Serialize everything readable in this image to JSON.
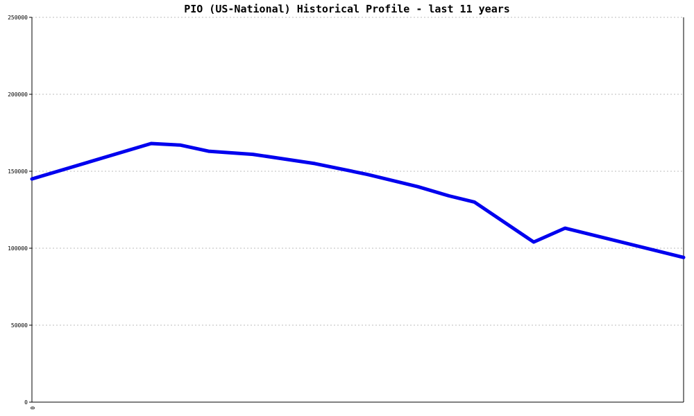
{
  "chart_data": {
    "type": "line",
    "title": "PIO (US-National) Historical Profile - last 11 years",
    "xlabel": "",
    "ylabel": "",
    "ylim": [
      0,
      250000
    ],
    "yticks": [
      0,
      50000,
      100000,
      150000,
      200000,
      250000
    ],
    "ytick_labels": [
      "0",
      "50000",
      "100000",
      "150000",
      "200000",
      "250000"
    ],
    "xtick_labels": [
      "0"
    ],
    "grid": true,
    "series": [
      {
        "color": "#0000ee",
        "points": [
          {
            "x": 0.0,
            "y": 145000
          },
          {
            "x": 0.183,
            "y": 168000
          },
          {
            "x": 0.228,
            "y": 167000
          },
          {
            "x": 0.271,
            "y": 163000
          },
          {
            "x": 0.339,
            "y": 161000
          },
          {
            "x": 0.434,
            "y": 155000
          },
          {
            "x": 0.514,
            "y": 148000
          },
          {
            "x": 0.592,
            "y": 140000
          },
          {
            "x": 0.64,
            "y": 134000
          },
          {
            "x": 0.679,
            "y": 130000
          },
          {
            "x": 0.77,
            "y": 104000
          },
          {
            "x": 0.818,
            "y": 113000
          },
          {
            "x": 1.0,
            "y": 94000
          }
        ]
      }
    ]
  }
}
